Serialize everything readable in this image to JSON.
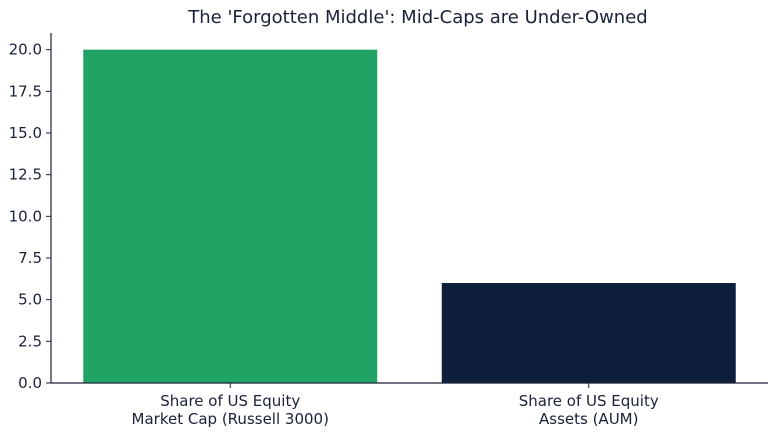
{
  "chart_data": {
    "type": "bar",
    "title": "The 'Forgotten Middle': Mid-Caps are Under-Owned",
    "xlabel": "",
    "ylabel": "",
    "categories": [
      [
        "Share of US Equity",
        "Market Cap (Russell 3000)"
      ],
      [
        "Share of US Equity",
        "Assets (AUM)"
      ]
    ],
    "values": [
      20.0,
      6.0
    ],
    "colors": [
      "#21a366",
      "#0d1f3a"
    ],
    "ylim": [
      0,
      21
    ],
    "yticks": [
      "0.0",
      "2.5",
      "5.0",
      "7.5",
      "10.0",
      "12.5",
      "15.0",
      "17.5",
      "20.0"
    ],
    "grid": false,
    "legend": "none"
  }
}
